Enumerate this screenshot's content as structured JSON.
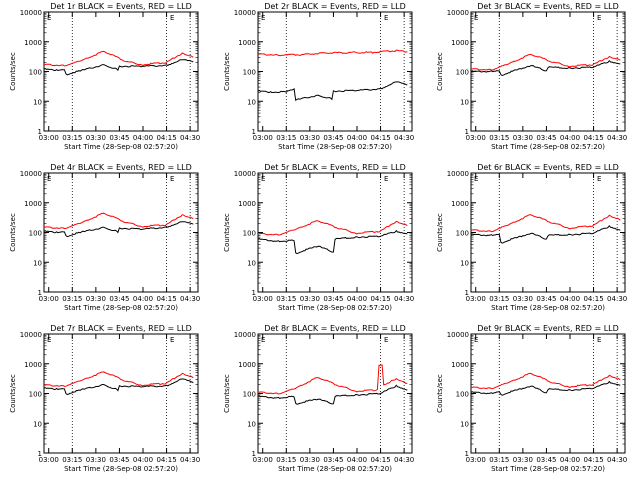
{
  "colors": {
    "events": "#000000",
    "lld": "#ff0000",
    "frame": "#000000"
  },
  "common": {
    "x_ticks": [
      "03:00",
      "03:15",
      "03:30",
      "03:45",
      "04:00",
      "04:15",
      "04:30"
    ],
    "y_ticks": [
      "1",
      "10",
      "100",
      "1000",
      "10000"
    ],
    "ylabel": "Counts/sec",
    "xlabel": "Start Time (28-Sep-08 02:57:20)",
    "corner_marker": "E",
    "dotted_lines_at": [
      "03:15",
      "04:15",
      "04:30"
    ]
  },
  "chart_data": [
    {
      "type": "line",
      "title": "Det 1r BLACK = Events, RED = LLD",
      "xlabel": "Start Time (28-Sep-08 02:57:20)",
      "ylabel": "Counts/sec",
      "y_scale": "log",
      "ylim": [
        1,
        10000
      ],
      "xlim": [
        "02:57",
        "04:35"
      ],
      "series": [
        {
          "name": "Events",
          "color": "#000000",
          "x": [
            "02:57",
            "03:05",
            "03:10",
            "03:11",
            "03:20",
            "03:35",
            "03:44",
            "03:45",
            "04:00",
            "04:15",
            "04:25",
            "04:32"
          ],
          "y": [
            120,
            110,
            120,
            80,
            105,
            170,
            115,
            150,
            150,
            160,
            250,
            210
          ]
        },
        {
          "name": "LLD",
          "color": "#ff0000",
          "x": [
            "02:57",
            "03:10",
            "03:20",
            "03:35",
            "03:50",
            "04:00",
            "04:15",
            "04:25",
            "04:32"
          ],
          "y": [
            170,
            160,
            220,
            480,
            210,
            170,
            200,
            420,
            300
          ]
        }
      ]
    },
    {
      "type": "line",
      "title": "Det 2r BLACK = Events, RED = LLD",
      "xlabel": "Start Time (28-Sep-08 02:57:20)",
      "ylabel": "Counts/sec",
      "y_scale": "log",
      "ylim": [
        1,
        10000
      ],
      "xlim": [
        "02:57",
        "04:35"
      ],
      "series": [
        {
          "name": "Events",
          "color": "#000000",
          "x": [
            "02:57",
            "03:05",
            "03:15",
            "03:20",
            "03:21",
            "03:35",
            "03:44",
            "03:45",
            "04:00",
            "04:15",
            "04:25",
            "04:32"
          ],
          "y": [
            22,
            20,
            21,
            25,
            11,
            16,
            12,
            22,
            23,
            26,
            45,
            35
          ]
        },
        {
          "name": "LLD",
          "color": "#ff0000",
          "x": [
            "02:57",
            "03:10",
            "03:25",
            "03:40",
            "03:55",
            "04:10",
            "04:25",
            "04:32"
          ],
          "y": [
            380,
            360,
            370,
            420,
            430,
            440,
            500,
            460
          ]
        }
      ]
    },
    {
      "type": "line",
      "title": "Det 3r BLACK = Events, RED = LLD",
      "xlabel": "Start Time (28-Sep-08 02:57:20)",
      "ylabel": "Counts/sec",
      "y_scale": "log",
      "ylim": [
        1,
        10000
      ],
      "xlim": [
        "02:57",
        "04:35"
      ],
      "series": [
        {
          "name": "Events",
          "color": "#000000",
          "x": [
            "02:57",
            "03:10",
            "03:15",
            "03:16",
            "03:35",
            "03:45",
            "03:46",
            "04:00",
            "04:15",
            "04:25",
            "04:32"
          ],
          "y": [
            100,
            100,
            110,
            75,
            160,
            105,
            140,
            130,
            140,
            220,
            180
          ]
        },
        {
          "name": "LLD",
          "color": "#ff0000",
          "x": [
            "02:57",
            "03:10",
            "03:20",
            "03:35",
            "03:50",
            "04:00",
            "04:15",
            "04:25",
            "04:32"
          ],
          "y": [
            120,
            115,
            170,
            380,
            200,
            150,
            170,
            320,
            240
          ]
        }
      ]
    },
    {
      "type": "line",
      "title": "Det 4r BLACK = Events, RED = LLD",
      "xlabel": "Start Time (28-Sep-08 02:57:20)",
      "ylabel": "Counts/sec",
      "y_scale": "log",
      "ylim": [
        1,
        10000
      ],
      "xlim": [
        "02:57",
        "04:35"
      ],
      "series": [
        {
          "name": "Events",
          "color": "#000000",
          "x": [
            "02:57",
            "03:05",
            "03:10",
            "03:11",
            "03:20",
            "03:35",
            "03:44",
            "03:45",
            "04:00",
            "04:15",
            "04:25",
            "04:32"
          ],
          "y": [
            110,
            100,
            110,
            75,
            100,
            150,
            105,
            140,
            130,
            150,
            230,
            190
          ]
        },
        {
          "name": "LLD",
          "color": "#ff0000",
          "x": [
            "02:57",
            "03:10",
            "03:20",
            "03:35",
            "03:50",
            "04:00",
            "04:15",
            "04:25",
            "04:32"
          ],
          "y": [
            150,
            140,
            200,
            450,
            210,
            160,
            180,
            400,
            290
          ]
        }
      ]
    },
    {
      "type": "line",
      "title": "Det 5r BLACK = Events, RED = LLD",
      "xlabel": "Start Time (28-Sep-08 02:57:20)",
      "ylabel": "Counts/sec",
      "y_scale": "log",
      "ylim": [
        1,
        10000
      ],
      "xlim": [
        "02:57",
        "04:35"
      ],
      "series": [
        {
          "name": "Events",
          "color": "#000000",
          "x": [
            "02:57",
            "03:10",
            "03:20",
            "03:21",
            "03:35",
            "03:45",
            "03:46",
            "04:00",
            "04:15",
            "04:25",
            "04:32"
          ],
          "y": [
            60,
            50,
            55,
            20,
            35,
            22,
            60,
            70,
            75,
            110,
            90
          ]
        },
        {
          "name": "LLD",
          "color": "#ff0000",
          "x": [
            "02:57",
            "03:10",
            "03:20",
            "03:35",
            "03:50",
            "04:00",
            "04:15",
            "04:25",
            "04:32"
          ],
          "y": [
            90,
            85,
            120,
            250,
            130,
            95,
            110,
            240,
            170
          ]
        }
      ]
    },
    {
      "type": "line",
      "title": "Det 6r BLACK = Events, RED = LLD",
      "xlabel": "Start Time (28-Sep-08 02:57:20)",
      "ylabel": "Counts/sec",
      "y_scale": "log",
      "ylim": [
        1,
        10000
      ],
      "xlim": [
        "02:57",
        "04:35"
      ],
      "series": [
        {
          "name": "Events",
          "color": "#000000",
          "x": [
            "02:57",
            "03:10",
            "03:15",
            "03:16",
            "03:35",
            "03:45",
            "03:46",
            "04:00",
            "04:15",
            "04:25",
            "04:32"
          ],
          "y": [
            85,
            80,
            90,
            45,
            95,
            60,
            80,
            85,
            95,
            160,
            120
          ]
        },
        {
          "name": "LLD",
          "color": "#ff0000",
          "x": [
            "02:57",
            "03:10",
            "03:20",
            "03:35",
            "03:50",
            "04:00",
            "04:15",
            "04:25",
            "04:32"
          ],
          "y": [
            120,
            110,
            170,
            400,
            200,
            140,
            170,
            380,
            260
          ]
        }
      ]
    },
    {
      "type": "line",
      "title": "Det 7r BLACK = Events, RED = LLD",
      "xlabel": "Start Time (28-Sep-08 02:57:20)",
      "ylabel": "Counts/sec",
      "y_scale": "log",
      "ylim": [
        1,
        10000
      ],
      "xlim": [
        "02:57",
        "04:35"
      ],
      "series": [
        {
          "name": "Events",
          "color": "#000000",
          "x": [
            "02:57",
            "03:05",
            "03:10",
            "03:11",
            "03:20",
            "03:35",
            "03:44",
            "03:45",
            "04:00",
            "04:15",
            "04:25",
            "04:32"
          ],
          "y": [
            150,
            140,
            150,
            95,
            130,
            200,
            130,
            180,
            170,
            180,
            310,
            230
          ]
        },
        {
          "name": "LLD",
          "color": "#ff0000",
          "x": [
            "02:57",
            "03:10",
            "03:20",
            "03:35",
            "03:50",
            "04:00",
            "04:15",
            "04:25",
            "04:32"
          ],
          "y": [
            190,
            180,
            260,
            540,
            250,
            190,
            220,
            480,
            340
          ]
        }
      ]
    },
    {
      "type": "line",
      "title": "Det 8r BLACK = Events, RED = LLD",
      "xlabel": "Start Time (28-Sep-08 02:57:20)",
      "ylabel": "Counts/sec",
      "y_scale": "log",
      "ylim": [
        1,
        10000
      ],
      "xlim": [
        "02:57",
        "04:35"
      ],
      "series": [
        {
          "name": "Events",
          "color": "#000000",
          "x": [
            "02:57",
            "03:10",
            "03:20",
            "03:21",
            "03:35",
            "03:45",
            "03:46",
            "04:00",
            "04:15",
            "04:25",
            "04:32"
          ],
          "y": [
            80,
            70,
            80,
            45,
            65,
            45,
            80,
            90,
            100,
            180,
            130
          ]
        },
        {
          "name": "LLD",
          "color": "#ff0000",
          "x": [
            "02:57",
            "03:10",
            "03:20",
            "03:35",
            "03:50",
            "04:00",
            "04:13",
            "04:14",
            "04:16",
            "04:17",
            "04:25",
            "04:32"
          ],
          "y": [
            110,
            100,
            140,
            350,
            170,
            120,
            130,
            900,
            900,
            200,
            300,
            220
          ]
        }
      ]
    },
    {
      "type": "line",
      "title": "Det 9r BLACK = Events, RED = LLD",
      "xlabel": "Start Time (28-Sep-08 02:57:20)",
      "ylabel": "Counts/sec",
      "y_scale": "log",
      "ylim": [
        1,
        10000
      ],
      "xlim": [
        "02:57",
        "04:35"
      ],
      "series": [
        {
          "name": "Events",
          "color": "#000000",
          "x": [
            "02:57",
            "03:10",
            "03:15",
            "03:16",
            "03:35",
            "03:45",
            "03:46",
            "04:00",
            "04:15",
            "04:25",
            "04:32"
          ],
          "y": [
            110,
            100,
            120,
            90,
            180,
            105,
            140,
            130,
            150,
            240,
            190
          ]
        },
        {
          "name": "LLD",
          "color": "#ff0000",
          "x": [
            "02:57",
            "03:10",
            "03:20",
            "03:35",
            "03:50",
            "04:00",
            "04:15",
            "04:25",
            "04:32"
          ],
          "y": [
            160,
            150,
            220,
            480,
            220,
            170,
            200,
            410,
            290
          ]
        }
      ]
    }
  ]
}
